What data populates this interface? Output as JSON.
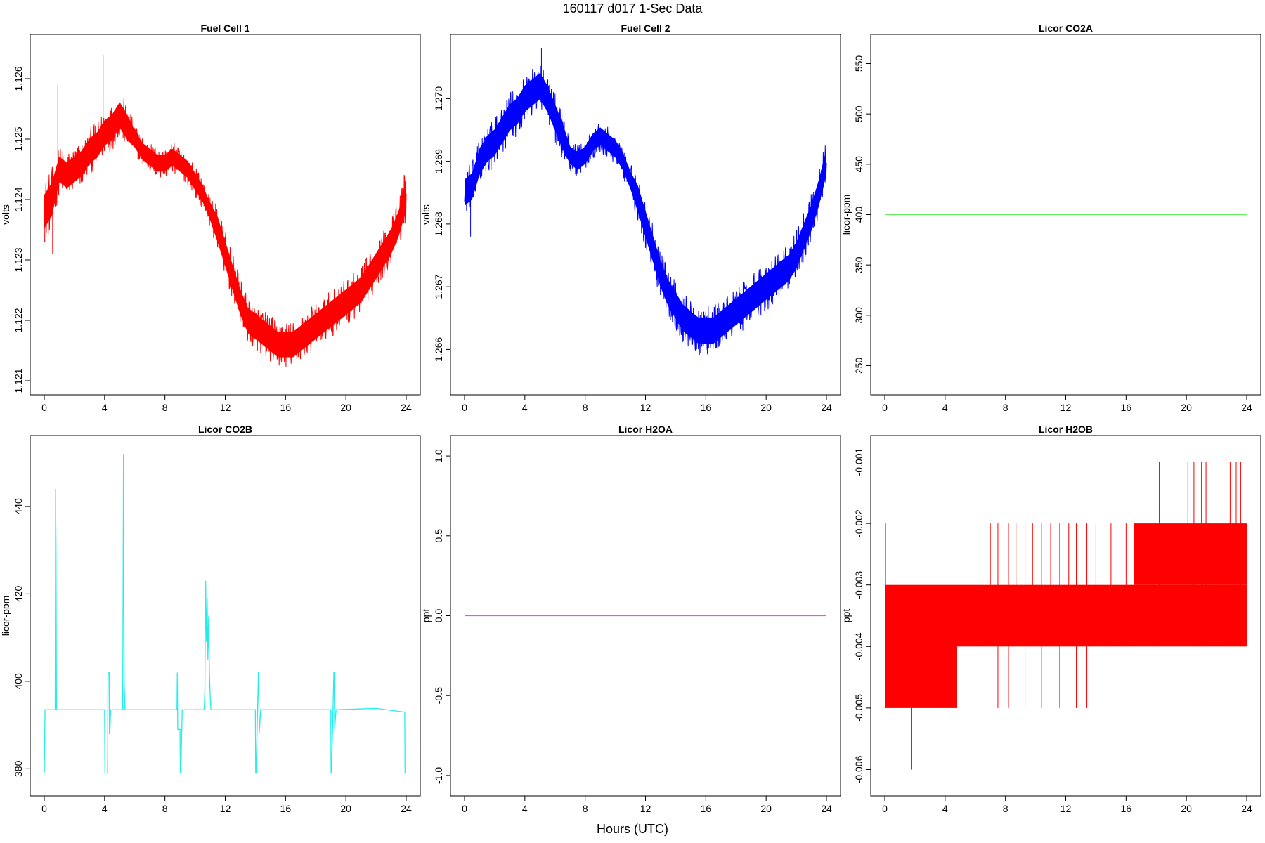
{
  "title": "160117   d017   1-Sec Data",
  "xlabel_common": "Hours (UTC)",
  "chart_data": [
    {
      "type": "line",
      "title": "Fuel Cell 1",
      "ylabel": "volts",
      "color": "#ff0000",
      "band": true,
      "xlim": [
        0,
        24
      ],
      "ylim": [
        1.121,
        1.1265
      ],
      "xticks": [
        0,
        4,
        8,
        12,
        16,
        20,
        24
      ],
      "yticks": [
        1.121,
        1.122,
        1.123,
        1.124,
        1.125,
        1.126
      ],
      "ytick_labels": [
        "1.121",
        "1.122",
        "1.123",
        "1.124",
        "1.125",
        "1.126"
      ],
      "series": [
        {
          "x": [
            0,
            0.5,
            1,
            1.5,
            2,
            2.5,
            3,
            3.5,
            4,
            4.5,
            5,
            5.5,
            6,
            6.5,
            7,
            7.5,
            8,
            8.5,
            9,
            9.5,
            10,
            10.5,
            11,
            11.5,
            12,
            12.5,
            13,
            13.5,
            14,
            14.5,
            15,
            15.5,
            16,
            16.5,
            17,
            17.5,
            18,
            18.5,
            19,
            19.5,
            20,
            20.5,
            21,
            21.5,
            22,
            22.5,
            23,
            23.5,
            24
          ],
          "y": [
            1.1238,
            1.124,
            1.1245,
            1.1244,
            1.1245,
            1.1246,
            1.1248,
            1.1249,
            1.1251,
            1.1252,
            1.1254,
            1.1252,
            1.125,
            1.1248,
            1.1247,
            1.1246,
            1.1246,
            1.1247,
            1.1246,
            1.1245,
            1.1243,
            1.1241,
            1.1238,
            1.1235,
            1.1231,
            1.1227,
            1.1223,
            1.122,
            1.1219,
            1.1218,
            1.1217,
            1.1216,
            1.1216,
            1.1216,
            1.1217,
            1.1218,
            1.1219,
            1.122,
            1.1221,
            1.1222,
            1.1223,
            1.1224,
            1.1225,
            1.1227,
            1.1229,
            1.1231,
            1.1233,
            1.1236,
            1.1241
          ],
          "spread": [
            0.0004,
            0.0004,
            0.0003,
            0.0003,
            0.0003,
            0.0003,
            0.0003,
            0.0003,
            0.0003,
            0.0003,
            0.0003,
            0.0003,
            0.0002,
            0.0002,
            0.0002,
            0.0002,
            0.0002,
            0.0002,
            0.0002,
            0.0002,
            0.0002,
            0.0002,
            0.0002,
            0.0003,
            0.0003,
            0.0003,
            0.0003,
            0.0003,
            0.0003,
            0.0003,
            0.0003,
            0.0003,
            0.0003,
            0.0003,
            0.0003,
            0.0003,
            0.0003,
            0.0003,
            0.0003,
            0.0003,
            0.0003,
            0.0003,
            0.0003,
            0.0003,
            0.0003,
            0.0003,
            0.0003,
            0.0003,
            0.0004
          ]
        }
      ],
      "spikes": [
        {
          "x": 0.9,
          "y": 1.1259
        },
        {
          "x": 3.9,
          "y": 1.1264
        },
        {
          "x": 0.55,
          "y": 1.1231
        }
      ]
    },
    {
      "type": "line",
      "title": "Fuel Cell 2",
      "ylabel": "volts",
      "color": "#0000ff",
      "band": true,
      "xlim": [
        0,
        24
      ],
      "ylim": [
        1.2655,
        1.2708
      ],
      "xticks": [
        0,
        4,
        8,
        12,
        16,
        20,
        24
      ],
      "yticks": [
        1.266,
        1.267,
        1.268,
        1.269,
        1.27
      ],
      "ytick_labels": [
        "1.266",
        "1.267",
        "1.268",
        "1.269",
        "1.270"
      ],
      "series": [
        {
          "x": [
            0,
            0.5,
            1,
            1.5,
            2,
            2.5,
            3,
            3.5,
            4,
            4.5,
            5,
            5.5,
            6,
            6.5,
            7,
            7.5,
            8,
            8.5,
            9,
            9.5,
            10,
            10.5,
            11,
            11.5,
            12,
            12.5,
            13,
            13.5,
            14,
            14.5,
            15,
            15.5,
            16,
            16.5,
            17,
            17.5,
            18,
            18.5,
            19,
            19.5,
            20,
            20.5,
            21,
            21.5,
            22,
            22.5,
            23,
            23.5,
            24
          ],
          "y": [
            1.2685,
            1.2686,
            1.269,
            1.2692,
            1.2693,
            1.2695,
            1.2697,
            1.2698,
            1.27,
            1.2701,
            1.2702,
            1.27,
            1.2697,
            1.2694,
            1.2691,
            1.269,
            1.2691,
            1.2693,
            1.2694,
            1.2693,
            1.2692,
            1.269,
            1.2687,
            1.2684,
            1.268,
            1.2676,
            1.2672,
            1.2669,
            1.2667,
            1.2665,
            1.2664,
            1.2663,
            1.2663,
            1.2663,
            1.2664,
            1.2665,
            1.2666,
            1.2667,
            1.2668,
            1.2669,
            1.267,
            1.2671,
            1.2672,
            1.2673,
            1.2675,
            1.2678,
            1.2681,
            1.2685,
            1.269
          ],
          "spread": [
            0.0003,
            0.0003,
            0.0003,
            0.0003,
            0.0003,
            0.0003,
            0.0003,
            0.0003,
            0.0003,
            0.0003,
            0.0003,
            0.0003,
            0.0003,
            0.0003,
            0.0002,
            0.0002,
            0.0002,
            0.0002,
            0.0002,
            0.0002,
            0.0002,
            0.0002,
            0.0002,
            0.0003,
            0.0003,
            0.0003,
            0.0003,
            0.0003,
            0.0003,
            0.0003,
            0.0003,
            0.0003,
            0.0003,
            0.0003,
            0.0003,
            0.0003,
            0.0003,
            0.0003,
            0.0003,
            0.0003,
            0.0003,
            0.0003,
            0.0003,
            0.0003,
            0.0003,
            0.0003,
            0.0003,
            0.0003,
            0.0003
          ]
        }
      ],
      "spikes": [
        {
          "x": 5.1,
          "y": 1.2708
        },
        {
          "x": 0.4,
          "y": 1.2678
        }
      ]
    },
    {
      "type": "line",
      "title": "Licor CO2A",
      "ylabel": "licor-ppm",
      "color": "#66ee66",
      "xlim": [
        0,
        24
      ],
      "ylim": [
        235,
        565
      ],
      "xticks": [
        0,
        4,
        8,
        12,
        16,
        20,
        24
      ],
      "yticks": [
        250,
        300,
        350,
        400,
        450,
        500,
        550
      ],
      "ytick_labels": [
        "250",
        "300",
        "350",
        "400",
        "450",
        "500",
        "550"
      ],
      "series": [
        {
          "x": [
            0,
            24
          ],
          "y": [
            400,
            400
          ]
        }
      ]
    },
    {
      "type": "line",
      "title": "Licor CO2B",
      "ylabel": "licor-ppm",
      "color": "#22eeee",
      "xlim": [
        0,
        24
      ],
      "ylim": [
        377,
        453
      ],
      "xticks": [
        0,
        4,
        8,
        12,
        16,
        20,
        24
      ],
      "yticks": [
        380,
        400,
        420,
        440
      ],
      "ytick_labels": [
        "380",
        "400",
        "420",
        "440"
      ],
      "series": [
        {
          "x": [
            0,
            0.05,
            0.08,
            0.1,
            0.72,
            0.75,
            0.78,
            0.81,
            0.85,
            4.0,
            4.02,
            4.05,
            4.2,
            4.22,
            4.25,
            4.3,
            4.32,
            4.35,
            4.4,
            4.42,
            5.2,
            5.25,
            5.3,
            5.35,
            5.4,
            8.8,
            8.82,
            8.85,
            9.0,
            9.02,
            9.05,
            9.15,
            9.17,
            9.2,
            10.6,
            10.65,
            10.7,
            10.75,
            10.8,
            10.85,
            10.9,
            10.95,
            11.0,
            11.05,
            11.1,
            14.0,
            14.02,
            14.05,
            14.2,
            14.22,
            14.25,
            14.35,
            14.37,
            19.0,
            19.02,
            19.05,
            19.2,
            19.22,
            19.25,
            19.35,
            19.37,
            22.0,
            23.8,
            23.82,
            23.9,
            23.92,
            23.95
          ],
          "y": [
            379,
            393.5,
            393.5,
            393.5,
            393.5,
            444,
            430,
            393.5,
            393.5,
            393.5,
            379,
            379,
            379,
            402,
            402,
            402,
            388,
            388,
            393.5,
            393.5,
            393.5,
            452,
            400,
            393.5,
            393.5,
            393.5,
            402,
            389,
            389,
            379,
            379,
            393.5,
            393.5,
            393.5,
            393.5,
            398,
            423,
            409,
            419,
            405,
            415,
            402,
            397,
            393.5,
            393.5,
            393.5,
            379,
            379,
            402,
            402,
            388,
            393.5,
            393.5,
            393.5,
            379,
            379,
            402,
            402,
            389,
            393.5,
            393.5,
            393.8,
            393,
            393,
            393,
            379,
            379
          ]
        }
      ]
    },
    {
      "type": "line",
      "title": "Licor H2OA",
      "ylabel": "ppt",
      "color": "#cc66cc",
      "xlim": [
        0,
        24
      ],
      "ylim": [
        -1.04,
        1.04
      ],
      "xticks": [
        0,
        4,
        8,
        12,
        16,
        20,
        24
      ],
      "yticks": [
        -1.0,
        -0.5,
        0.0,
        0.5,
        1.0
      ],
      "ytick_labels": [
        "-1.0",
        "-0.5",
        "0.0",
        "0.5",
        "1.0"
      ],
      "series": [
        {
          "x": [
            0,
            24
          ],
          "y": [
            0,
            0
          ]
        }
      ]
    },
    {
      "type": "step-band",
      "title": "Licor H2OB",
      "ylabel": "ppt",
      "color": "#ff0000",
      "xlim": [
        0,
        24
      ],
      "ylim": [
        -0.0062,
        -0.0008
      ],
      "xticks": [
        0,
        4,
        8,
        12,
        16,
        20,
        24
      ],
      "yticks": [
        -0.006,
        -0.005,
        -0.004,
        -0.003,
        -0.002,
        -0.001
      ],
      "ytick_labels": [
        "-0.006",
        "-0.005",
        "-0.004",
        "-0.003",
        "-0.002",
        "-0.001"
      ],
      "blocks": [
        {
          "x0": 0,
          "x1": 4.8,
          "y0": -0.005,
          "y1": -0.003
        },
        {
          "x0": 4.8,
          "x1": 24,
          "y0": -0.004,
          "y1": -0.003
        },
        {
          "x0": 16.5,
          "x1": 24,
          "y0": -0.003,
          "y1": -0.002
        }
      ],
      "lines": [
        {
          "x": 0.05,
          "y0": -0.005,
          "y1": -0.002
        },
        {
          "x": 0.35,
          "y0": -0.006,
          "y1": -0.004
        },
        {
          "x": 1.75,
          "y0": -0.006,
          "y1": -0.004
        },
        {
          "x": 7.0,
          "y0": -0.004,
          "y1": -0.002
        },
        {
          "x": 7.5,
          "y0": -0.005,
          "y1": -0.002
        },
        {
          "x": 8.2,
          "y0": -0.005,
          "y1": -0.002
        },
        {
          "x": 8.7,
          "y0": -0.004,
          "y1": -0.002
        },
        {
          "x": 9.3,
          "y0": -0.005,
          "y1": -0.002
        },
        {
          "x": 9.8,
          "y0": -0.004,
          "y1": -0.002
        },
        {
          "x": 10.4,
          "y0": -0.005,
          "y1": -0.002
        },
        {
          "x": 11.0,
          "y0": -0.004,
          "y1": -0.002
        },
        {
          "x": 11.6,
          "y0": -0.005,
          "y1": -0.002
        },
        {
          "x": 12.2,
          "y0": -0.004,
          "y1": -0.002
        },
        {
          "x": 12.7,
          "y0": -0.005,
          "y1": -0.002
        },
        {
          "x": 13.4,
          "y0": -0.005,
          "y1": -0.002
        },
        {
          "x": 14.0,
          "y0": -0.004,
          "y1": -0.002
        },
        {
          "x": 15.0,
          "y0": -0.004,
          "y1": -0.002
        },
        {
          "x": 16.0,
          "y0": -0.004,
          "y1": -0.002
        },
        {
          "x": 18.2,
          "y0": -0.004,
          "y1": -0.001
        },
        {
          "x": 20.1,
          "y0": -0.004,
          "y1": -0.001
        },
        {
          "x": 20.5,
          "y0": -0.004,
          "y1": -0.001
        },
        {
          "x": 21.0,
          "y0": -0.004,
          "y1": -0.001
        },
        {
          "x": 21.3,
          "y0": -0.004,
          "y1": -0.001
        },
        {
          "x": 22.9,
          "y0": -0.004,
          "y1": -0.001
        },
        {
          "x": 23.3,
          "y0": -0.004,
          "y1": -0.001
        },
        {
          "x": 23.6,
          "y0": -0.004,
          "y1": -0.001
        }
      ]
    }
  ]
}
